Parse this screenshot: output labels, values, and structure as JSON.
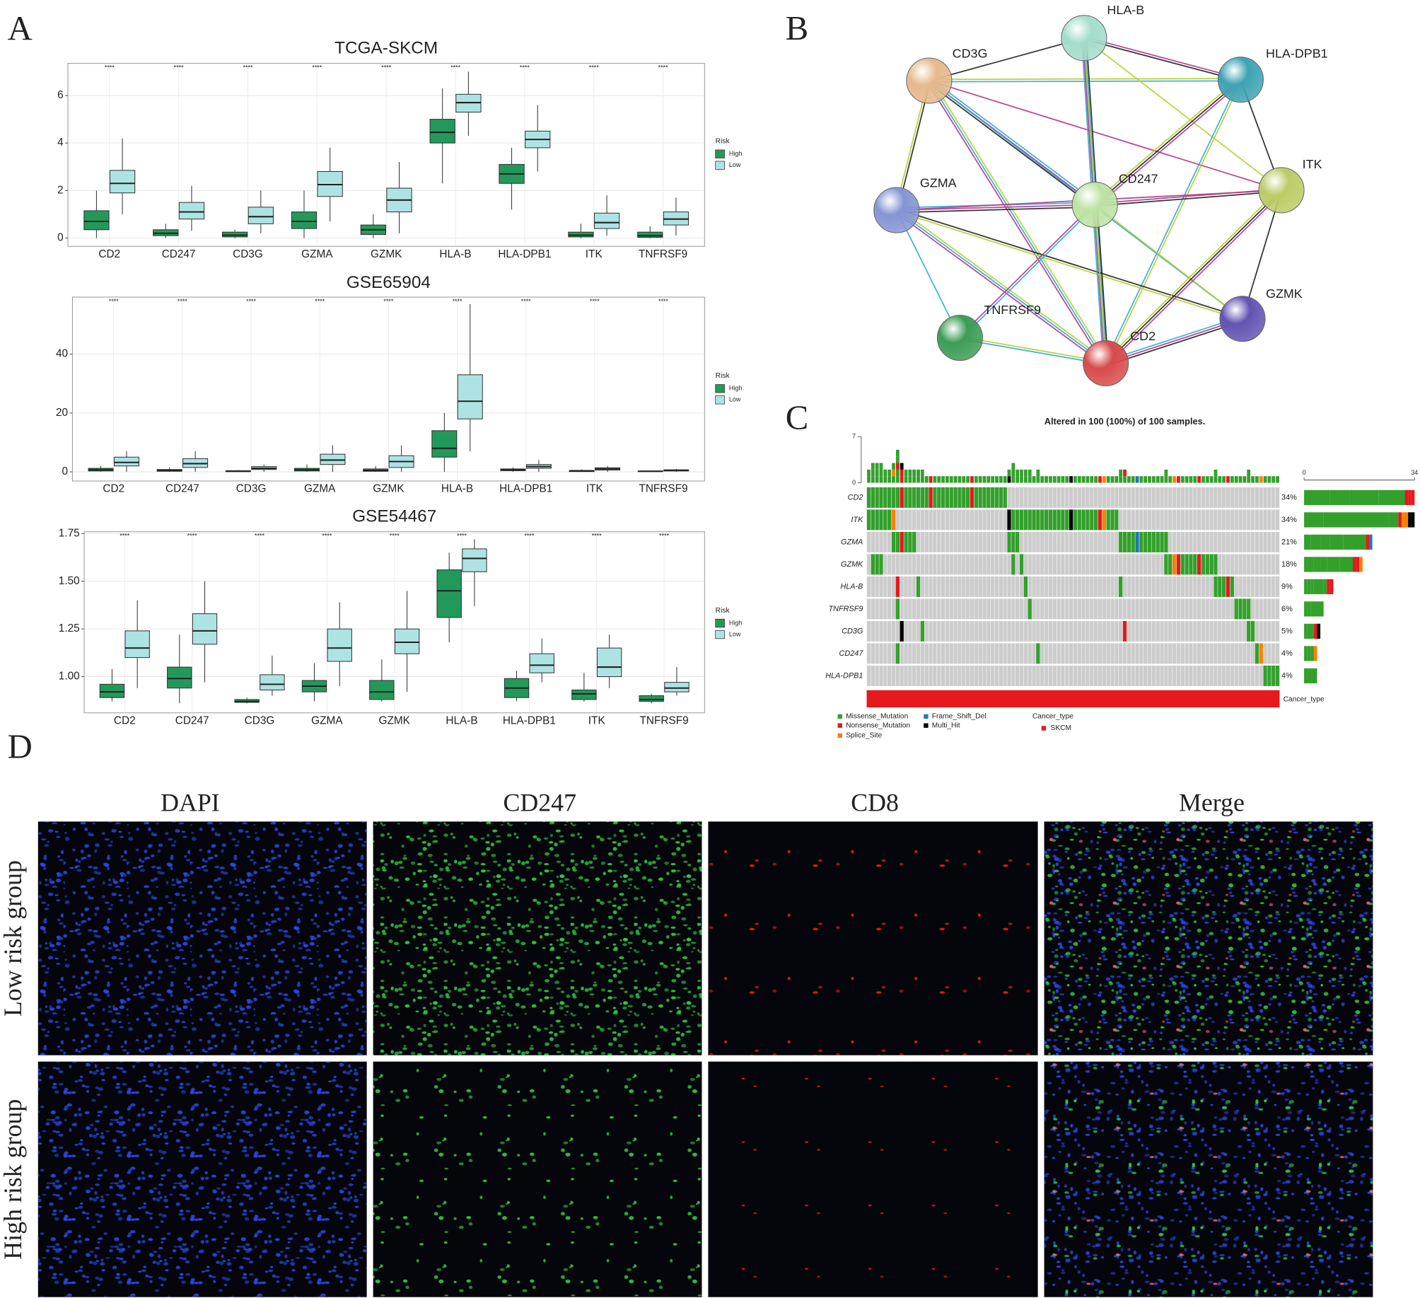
{
  "panel_labels": [
    "A",
    "B",
    "C",
    "D"
  ],
  "chart_data": [
    {
      "type": "box",
      "title": "TCGA-SKCM",
      "legend_title": "Risk",
      "grid": true,
      "categories": [
        "CD2",
        "CD247",
        "CD3G",
        "GZMA",
        "GZMK",
        "HLA-B",
        "HLA-DPB1",
        "ITK",
        "TNFRSF9"
      ],
      "significance": [
        "****",
        "****",
        "****",
        "****",
        "****",
        "****",
        "****",
        "****",
        "****"
      ],
      "ylim": [
        -0.35,
        7.35
      ],
      "yticks": [
        0,
        2,
        4,
        6
      ],
      "series": [
        {
          "name": "High",
          "color": "#22995a",
          "min": [
            0,
            0,
            0,
            0,
            0,
            2.3,
            1.2,
            0,
            0
          ],
          "q1": [
            0.35,
            0.1,
            0.05,
            0.4,
            0.15,
            4.0,
            2.3,
            0.05,
            0.03
          ],
          "median": [
            0.7,
            0.2,
            0.12,
            0.7,
            0.35,
            4.45,
            2.7,
            0.12,
            0.1
          ],
          "q3": [
            1.15,
            0.35,
            0.25,
            1.1,
            0.55,
            5.0,
            3.1,
            0.25,
            0.25
          ],
          "max": [
            2.0,
            0.6,
            0.35,
            2.0,
            1.0,
            6.3,
            3.8,
            0.6,
            0.5
          ]
        },
        {
          "name": "Low",
          "color": "#aee3e3",
          "min": [
            1.0,
            0.3,
            0.2,
            0.7,
            0.2,
            4.3,
            2.8,
            0.1,
            0.1
          ],
          "q1": [
            1.9,
            0.8,
            0.6,
            1.75,
            1.1,
            5.3,
            3.8,
            0.4,
            0.55
          ],
          "median": [
            2.3,
            1.1,
            0.9,
            2.25,
            1.6,
            5.7,
            4.15,
            0.65,
            0.8
          ],
          "q3": [
            2.85,
            1.5,
            1.3,
            2.8,
            2.1,
            6.05,
            4.5,
            1.05,
            1.1
          ],
          "max": [
            4.2,
            2.2,
            2.0,
            3.8,
            3.2,
            7.0,
            5.6,
            1.8,
            1.7
          ]
        }
      ]
    },
    {
      "type": "box",
      "title": "GSE65904",
      "legend_title": "Risk",
      "grid": true,
      "categories": [
        "CD2",
        "CD247",
        "CD3G",
        "GZMA",
        "GZMK",
        "HLA-B",
        "HLA-DPB1",
        "ITK",
        "TNFRSF9"
      ],
      "significance": [
        "****",
        "****",
        "****",
        "****",
        "****",
        "****",
        "****",
        "****",
        "****"
      ],
      "ylim": [
        -3.1,
        59.4
      ],
      "yticks": [
        0,
        20,
        40
      ],
      "series": [
        {
          "name": "High",
          "color": "#22995a",
          "min": [
            0,
            0,
            0,
            0,
            0,
            0,
            0,
            0,
            0
          ],
          "q1": [
            0.3,
            0.2,
            0.1,
            0.3,
            0.2,
            5,
            0.4,
            0.1,
            0.1
          ],
          "median": [
            0.7,
            0.5,
            0.2,
            0.7,
            0.5,
            8,
            0.7,
            0.3,
            0.2
          ],
          "q3": [
            1.2,
            0.8,
            0.4,
            1.2,
            1.0,
            14,
            1.0,
            0.5,
            0.3
          ],
          "max": [
            2,
            1.5,
            0.6,
            2.5,
            2,
            20,
            1.5,
            0.8,
            0.4
          ]
        },
        {
          "name": "Low",
          "color": "#aee3e3",
          "min": [
            0,
            0,
            0,
            0,
            0,
            7,
            0,
            0,
            0
          ],
          "q1": [
            2,
            1.5,
            0.8,
            2.5,
            1.5,
            18,
            1.2,
            0.6,
            0.3
          ],
          "median": [
            3.2,
            2.8,
            1.2,
            4,
            3.5,
            24,
            1.8,
            1.0,
            0.5
          ],
          "q3": [
            5,
            4.5,
            1.8,
            6,
            5.5,
            33,
            2.5,
            1.4,
            0.7
          ],
          "max": [
            7,
            7,
            2.5,
            9,
            9,
            57,
            4,
            2,
            1
          ]
        }
      ]
    },
    {
      "type": "box",
      "title": "GSE54467",
      "legend_title": "Risk",
      "grid": true,
      "categories": [
        "CD2",
        "CD247",
        "CD3G",
        "GZMA",
        "GZMK",
        "HLA-B",
        "HLA-DPB1",
        "ITK",
        "TNFRSF9"
      ],
      "significance": [
        "****",
        "****",
        "****",
        "****",
        "****",
        "****",
        "****",
        "****",
        "****"
      ],
      "ylim": [
        0.81,
        1.76
      ],
      "yticks": [
        {
          "value": 1,
          "label": "1.00"
        },
        {
          "value": 1.25,
          "label": "1.25"
        },
        {
          "value": 1.5,
          "label": "1.50"
        },
        {
          "value": 1.75,
          "label": "1.75"
        }
      ],
      "series": [
        {
          "name": "High",
          "color": "#22995a",
          "min": [
            0.87,
            0.86,
            0.86,
            0.87,
            0.87,
            1.18,
            0.87,
            0.87,
            0.86
          ],
          "q1": [
            0.89,
            0.94,
            0.865,
            0.92,
            0.88,
            1.31,
            0.89,
            0.88,
            0.87
          ],
          "median": [
            0.92,
            0.99,
            0.87,
            0.95,
            0.92,
            1.45,
            0.94,
            0.91,
            0.88
          ],
          "q3": [
            0.96,
            1.05,
            0.88,
            0.98,
            0.98,
            1.56,
            0.99,
            0.93,
            0.9
          ],
          "max": [
            1.04,
            1.22,
            0.89,
            1.07,
            1.09,
            1.65,
            1.03,
            1.02,
            0.91
          ]
        },
        {
          "name": "Low",
          "color": "#aee3e3",
          "min": [
            0.94,
            0.97,
            0.9,
            0.95,
            0.92,
            1.37,
            0.97,
            0.94,
            0.9
          ],
          "q1": [
            1.1,
            1.17,
            0.93,
            1.08,
            1.12,
            1.55,
            1.02,
            1.0,
            0.92
          ],
          "median": [
            1.15,
            1.24,
            0.96,
            1.15,
            1.18,
            1.62,
            1.06,
            1.05,
            0.94
          ],
          "q3": [
            1.24,
            1.33,
            1.01,
            1.25,
            1.25,
            1.67,
            1.12,
            1.15,
            0.97
          ],
          "max": [
            1.4,
            1.5,
            1.11,
            1.39,
            1.45,
            1.72,
            1.2,
            1.22,
            1.05
          ]
        }
      ]
    },
    {
      "type": "oncoplot",
      "title": "Altered in 100 (100%) of 100 samples.",
      "genes": [
        "CD2",
        "ITK",
        "GZMA",
        "GZMK",
        "HLA-B",
        "TNFRSF9",
        "CD3G",
        "CD247",
        "HLA-DPB1"
      ],
      "values": [
        34,
        34,
        21,
        18,
        9,
        6,
        5,
        4,
        4
      ],
      "value_labels": [
        "34%",
        "34%",
        "21%",
        "18%",
        "9%",
        "6%",
        "5%",
        "4%",
        "4%"
      ],
      "xlim": [
        0,
        100
      ],
      "tmb_ylim": [
        0,
        7
      ],
      "tmb_yticks": [
        0,
        7
      ],
      "count_xlim": [
        0,
        34
      ],
      "count_xticks": [
        0,
        34
      ],
      "mutation_types": [
        {
          "name": "Missense_Mutation",
          "color": "#33a02c"
        },
        {
          "name": "Nonsense_Mutation",
          "color": "#e31a1c"
        },
        {
          "name": "Splice_Site",
          "color": "#ff7f00"
        },
        {
          "name": "Frame_Shift_Del",
          "color": "#1f78b4"
        },
        {
          "name": "Multi_Hit",
          "color": "#000000"
        }
      ],
      "alterations": [
        [
          [
            0,
            8,
            0
          ],
          [
            8,
            1,
            1
          ],
          [
            9,
            6,
            0
          ],
          [
            15,
            1,
            1
          ],
          [
            16,
            9,
            0
          ],
          [
            25,
            1,
            1
          ],
          [
            26,
            8,
            0
          ]
        ],
        [
          [
            0,
            6,
            0
          ],
          [
            6,
            1,
            2
          ],
          [
            34,
            1,
            4
          ],
          [
            35,
            14,
            0
          ],
          [
            49,
            1,
            4
          ],
          [
            50,
            6,
            0
          ],
          [
            56,
            1,
            1
          ],
          [
            57,
            1,
            2
          ],
          [
            58,
            3,
            0
          ]
        ],
        [
          [
            6,
            2,
            0
          ],
          [
            8,
            1,
            1
          ],
          [
            9,
            3,
            0
          ],
          [
            34,
            3,
            0
          ],
          [
            61,
            4,
            0
          ],
          [
            65,
            1,
            3
          ],
          [
            66,
            7,
            0
          ]
        ],
        [
          [
            1,
            3,
            0
          ],
          [
            35,
            1,
            0
          ],
          [
            37,
            1,
            0
          ],
          [
            72,
            2,
            0
          ],
          [
            74,
            1,
            2
          ],
          [
            75,
            1,
            1
          ],
          [
            76,
            4,
            0
          ],
          [
            80,
            1,
            1
          ],
          [
            81,
            4,
            0
          ]
        ],
        [
          [
            7,
            1,
            1
          ],
          [
            12,
            1,
            0
          ],
          [
            38,
            1,
            0
          ],
          [
            61,
            1,
            0
          ],
          [
            84,
            3,
            0
          ],
          [
            87,
            1,
            1
          ],
          [
            88,
            1,
            0
          ]
        ],
        [
          [
            7,
            1,
            0
          ],
          [
            39,
            1,
            0
          ],
          [
            89,
            4,
            0
          ]
        ],
        [
          [
            8,
            1,
            4
          ],
          [
            13,
            1,
            0
          ],
          [
            62,
            1,
            1
          ],
          [
            92,
            2,
            0
          ]
        ],
        [
          [
            7,
            1,
            0
          ],
          [
            41,
            1,
            0
          ],
          [
            94,
            1,
            0
          ],
          [
            95,
            1,
            2
          ]
        ],
        [
          [
            96,
            4,
            0
          ]
        ]
      ],
      "annotation": {
        "name": "Cancer_type",
        "legend_title": "Cancer_type",
        "levels": [
          {
            "name": "SKCM",
            "color": "#e41a1c"
          }
        ]
      }
    }
  ],
  "network": {
    "nodes": [
      {
        "label": "HLA-B",
        "color": "#a5dccb"
      },
      {
        "label": "CD3G",
        "color": "#e6b98c"
      },
      {
        "label": "HLA-DPB1",
        "color": "#3ea3b3"
      },
      {
        "label": "GZMA",
        "color": "#8595d4"
      },
      {
        "label": "CD247",
        "color": "#bde3a4"
      },
      {
        "label": "ITK",
        "color": "#bccb66"
      },
      {
        "label": "TNFRSF9",
        "color": "#3c9c54"
      },
      {
        "label": "CD2",
        "color": "#d84a4a"
      },
      {
        "label": "GZMK",
        "color": "#6253b3"
      }
    ],
    "edges": [
      [
        1,
        0
      ],
      [
        1,
        2
      ],
      [
        1,
        4
      ],
      [
        1,
        5
      ],
      [
        1,
        3
      ],
      [
        1,
        7
      ],
      [
        1,
        8
      ],
      [
        0,
        2
      ],
      [
        0,
        4
      ],
      [
        0,
        5
      ],
      [
        0,
        7
      ],
      [
        2,
        4
      ],
      [
        2,
        5
      ],
      [
        2,
        7
      ],
      [
        3,
        4
      ],
      [
        3,
        5
      ],
      [
        3,
        8
      ],
      [
        3,
        7
      ],
      [
        3,
        6
      ],
      [
        4,
        5
      ],
      [
        4,
        7
      ],
      [
        4,
        8
      ],
      [
        4,
        6
      ],
      [
        5,
        7
      ],
      [
        5,
        8
      ],
      [
        6,
        7
      ],
      [
        7,
        8
      ]
    ]
  },
  "images": {
    "columns": [
      "DAPI",
      "CD247",
      "CD8",
      "Merge"
    ],
    "rows": [
      "Low risk group",
      "High risk group"
    ]
  }
}
